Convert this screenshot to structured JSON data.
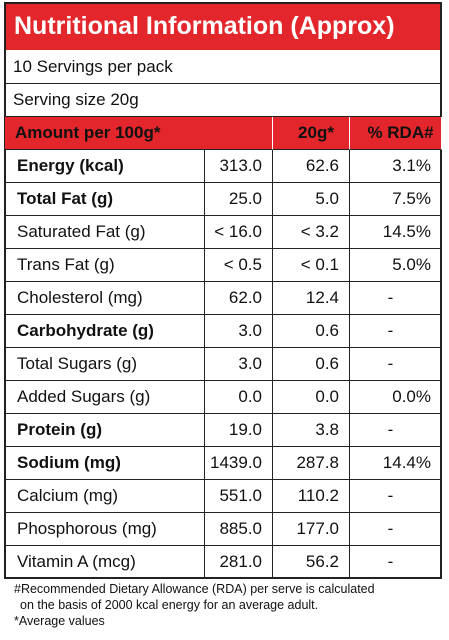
{
  "title": "Nutritional Information (Approx)",
  "servings": "10 Servings per pack",
  "serving_size": "Serving size 20g",
  "table": {
    "header": [
      "Amount per 100g*",
      "20g*",
      "% RDA#"
    ],
    "rows": [
      [
        "Energy (kcal)",
        "313.0",
        "62.6",
        "3.1%"
      ],
      [
        "Total Fat (g)",
        "25.0",
        "5.0",
        "7.5%"
      ],
      [
        "Saturated Fat (g)",
        "< 16.0",
        "< 3.2",
        "14.5%"
      ],
      [
        "Trans Fat (g)",
        "< 0.5",
        "< 0.1",
        "5.0%"
      ],
      [
        "Cholesterol (mg)",
        "62.0",
        "12.4",
        "-"
      ],
      [
        "Carbohydrate (g)",
        "3.0",
        "0.6",
        "-"
      ],
      [
        "Total Sugars (g)",
        "3.0",
        "0.6",
        "-"
      ],
      [
        "Added Sugars (g)",
        "0.0",
        "0.0",
        "0.0%"
      ],
      [
        "Protein (g)",
        "19.0",
        "3.8",
        "-"
      ],
      [
        "Sodium (mg)",
        "1439.0",
        "287.8",
        "14.4%"
      ],
      [
        "Calcium (mg)",
        "551.0",
        "110.2",
        "-"
      ],
      [
        "Phosphorous (mg)",
        "885.0",
        "177.0",
        "-"
      ],
      [
        "Vitamin A (mcg)",
        "281.0",
        "56.2",
        "-"
      ]
    ]
  },
  "footnotes": [
    "#Recommended Dietary Allowance (RDA) per serve is calculated",
    "on the basis of 2000 kcal energy for an average adult.",
    "*Average values"
  ]
}
